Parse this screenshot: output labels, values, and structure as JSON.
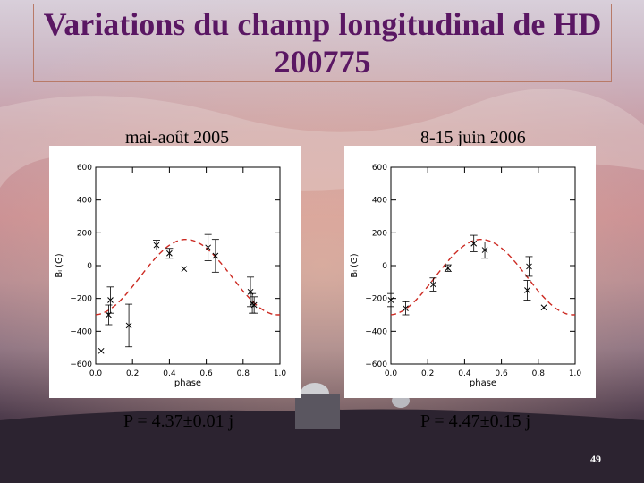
{
  "slide": {
    "title": "Variations du champ longitudinal de HD 200775",
    "page_number": "49",
    "colors": {
      "title": "#5a1763",
      "fit_curve": "#cc2a22",
      "points": "#000000"
    }
  },
  "chart_data": [
    {
      "type": "scatter",
      "caption_top": "mai-août 2005",
      "caption_bottom": "P = 4.37±0.01 j",
      "xlabel": "phase",
      "ylabel": "Bₗ (G)",
      "xlim": [
        0.0,
        1.0
      ],
      "ylim": [
        -600,
        600
      ],
      "xticks": [
        "0.0",
        "0.2",
        "0.4",
        "0.6",
        "0.8",
        "1.0"
      ],
      "yticks": [
        "600",
        "400",
        "200",
        "0",
        "−200",
        "−400",
        "−600"
      ],
      "points": [
        {
          "x": 0.03,
          "y": -520,
          "err": 0
        },
        {
          "x": 0.07,
          "y": -300,
          "err": 60
        },
        {
          "x": 0.08,
          "y": -210,
          "err": 80
        },
        {
          "x": 0.18,
          "y": -365,
          "err": 130
        },
        {
          "x": 0.33,
          "y": 125,
          "err": 30
        },
        {
          "x": 0.4,
          "y": 75,
          "err": 30
        },
        {
          "x": 0.48,
          "y": -20,
          "err": 0
        },
        {
          "x": 0.61,
          "y": 110,
          "err": 80
        },
        {
          "x": 0.65,
          "y": 60,
          "err": 100
        },
        {
          "x": 0.84,
          "y": -160,
          "err": 90
        },
        {
          "x": 0.85,
          "y": -230,
          "err": 60
        },
        {
          "x": 0.86,
          "y": -240,
          "err": 50
        }
      ],
      "fit": {
        "type": "sine",
        "mean": -70,
        "amplitude": 230,
        "peak_phase": 0.49
      }
    },
    {
      "type": "scatter",
      "caption_top": "8-15 juin 2006",
      "caption_bottom": "P = 4.47±0.15 j",
      "xlabel": "phase",
      "ylabel": "Bₗ (G)",
      "xlim": [
        0.0,
        1.0
      ],
      "ylim": [
        -600,
        600
      ],
      "xticks": [
        "0.0",
        "0.2",
        "0.4",
        "0.6",
        "0.8",
        "1.0"
      ],
      "yticks": [
        "600",
        "400",
        "200",
        "0",
        "−200",
        "−400",
        "−600"
      ],
      "points": [
        {
          "x": 0.0,
          "y": -210,
          "err": 40
        },
        {
          "x": 0.08,
          "y": -260,
          "err": 40
        },
        {
          "x": 0.23,
          "y": -115,
          "err": 40
        },
        {
          "x": 0.31,
          "y": -15,
          "err": 20
        },
        {
          "x": 0.45,
          "y": 135,
          "err": 50
        },
        {
          "x": 0.51,
          "y": 95,
          "err": 50
        },
        {
          "x": 0.74,
          "y": -150,
          "err": 60
        },
        {
          "x": 0.75,
          "y": -5,
          "err": 60
        },
        {
          "x": 0.83,
          "y": -255,
          "err": 0
        }
      ],
      "fit": {
        "type": "sine",
        "mean": -70,
        "amplitude": 230,
        "peak_phase": 0.49
      }
    }
  ]
}
